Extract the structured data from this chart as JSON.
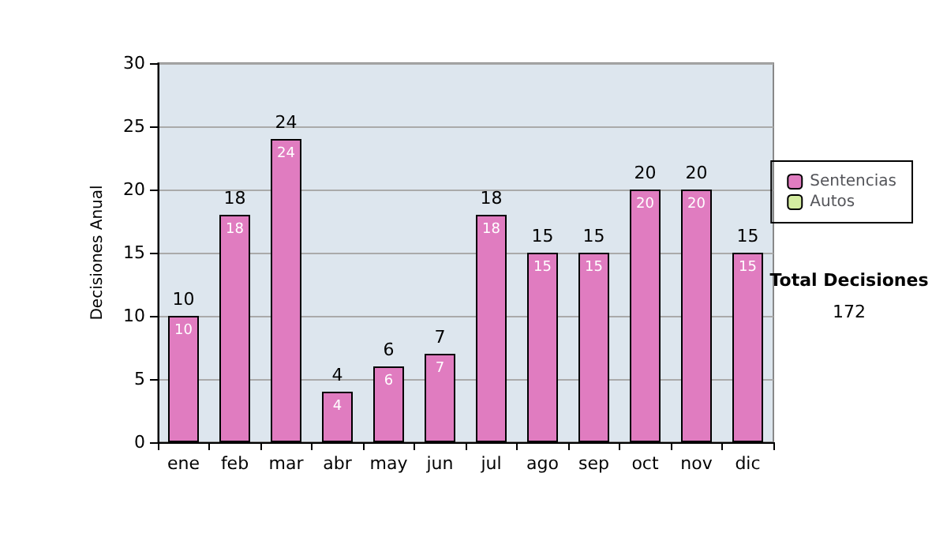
{
  "chart_data": {
    "type": "bar",
    "stacked": true,
    "ylabel": "Decisiones Anual",
    "categories": [
      "ene",
      "feb",
      "mar",
      "abr",
      "may",
      "jun",
      "jul",
      "ago",
      "sep",
      "oct",
      "nov",
      "dic"
    ],
    "series": [
      {
        "name": "Sentencias",
        "color": "#e07cc0",
        "values": [
          10,
          18,
          24,
          4,
          6,
          7,
          18,
          15,
          15,
          20,
          20,
          15
        ],
        "value_labels": [
          "10",
          "18",
          "24",
          "4",
          "6",
          "7",
          "18",
          "15",
          "15",
          "20",
          "20",
          "15"
        ]
      },
      {
        "name": "Autos",
        "color": "#d4eca0",
        "values": [
          0,
          0,
          0,
          0,
          0,
          0,
          0,
          0,
          0,
          0,
          0,
          0
        ]
      }
    ],
    "totals": [
      "10",
      "18",
      "24",
      "4",
      "6",
      "7",
      "18",
      "15",
      "15",
      "20",
      "20",
      "15"
    ],
    "ylim": [
      0,
      30
    ],
    "yticks": [
      0,
      5,
      10,
      15,
      20,
      25,
      30
    ],
    "grid": "y",
    "legend": "right",
    "annotations": [
      "Total Decisiones",
      "172"
    ]
  }
}
